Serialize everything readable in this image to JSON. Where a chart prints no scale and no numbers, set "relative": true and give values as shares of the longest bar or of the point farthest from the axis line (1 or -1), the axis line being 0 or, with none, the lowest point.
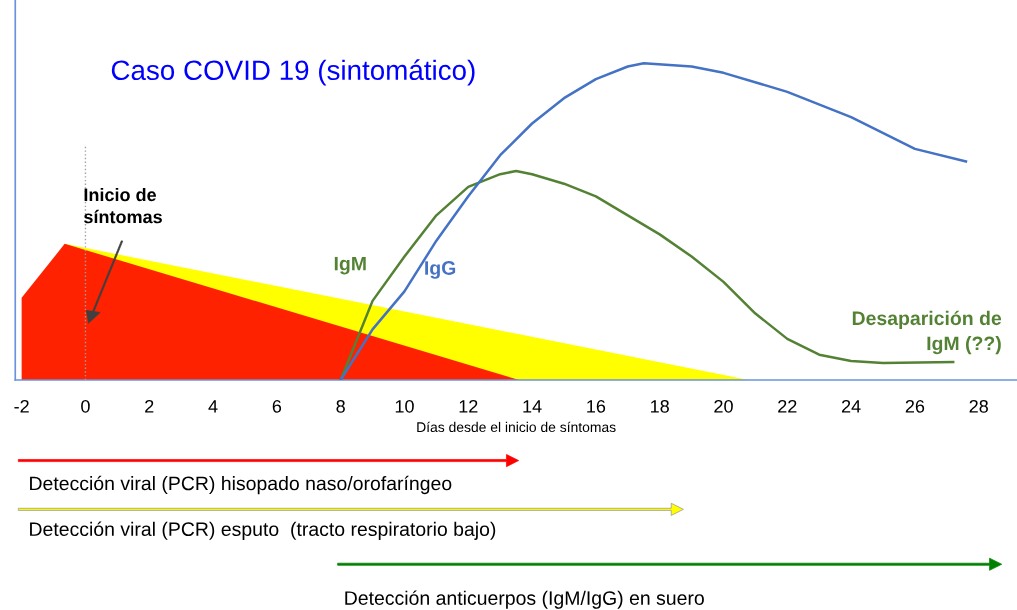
{
  "chart_data": {
    "type": "line",
    "title": "Caso COVID 19 (sintomático)",
    "xlabel": "Días desde el inicio de síntomas",
    "relative": true,
    "xlim": [
      -2.2,
      29.2
    ],
    "xticks": [
      -2,
      0,
      2,
      4,
      6,
      8,
      10,
      12,
      14,
      16,
      18,
      20,
      22,
      24,
      26,
      28
    ],
    "series": [
      {
        "type": "area",
        "color": "#ffff00",
        "x": [
          -0.65,
          20.8
        ],
        "values": [
          0.43,
          0
        ]
      },
      {
        "type": "area",
        "color": "#ff2200",
        "x": [
          -2,
          -0.65,
          13.6
        ],
        "values": [
          0.26,
          0.43,
          0
        ]
      },
      {
        "name": "IgM",
        "color": "#548235",
        "x": [
          8,
          9,
          10,
          11,
          12,
          13,
          13.5,
          14,
          15,
          16,
          17,
          18,
          19,
          20,
          21,
          22,
          23,
          24,
          25,
          27.2
        ],
        "values": [
          0,
          0.25,
          0.39,
          0.52,
          0.61,
          0.65,
          0.66,
          0.65,
          0.62,
          0.58,
          0.52,
          0.46,
          0.39,
          0.31,
          0.21,
          0.13,
          0.08,
          0.06,
          0.054,
          0.057
        ]
      },
      {
        "name": "IgG",
        "color": "#4472c4",
        "x": [
          8,
          9,
          10,
          11,
          12,
          13,
          14,
          15,
          16,
          17,
          17.5,
          19,
          20,
          22,
          24,
          26,
          27.6
        ],
        "values": [
          0,
          0.16,
          0.28,
          0.44,
          0.58,
          0.71,
          0.81,
          0.89,
          0.95,
          0.99,
          1.0,
          0.99,
          0.97,
          0.91,
          0.83,
          0.73,
          0.69
        ]
      }
    ],
    "ref_lines": [
      {
        "axis": "x",
        "value": 0,
        "color": "#a0a0a0",
        "line_style": "dotted"
      }
    ],
    "annotations": [
      "Inicio de\nsíntomas",
      "Desaparición de\nIgM (??)",
      "Detección viral (PCR) hisopado naso/orofaríngeo",
      "Detección viral (PCR) esputo  (tracto respiratorio bajo)",
      "Detección anticuerpos (IgM/IgG) en suero"
    ],
    "grid": false
  }
}
